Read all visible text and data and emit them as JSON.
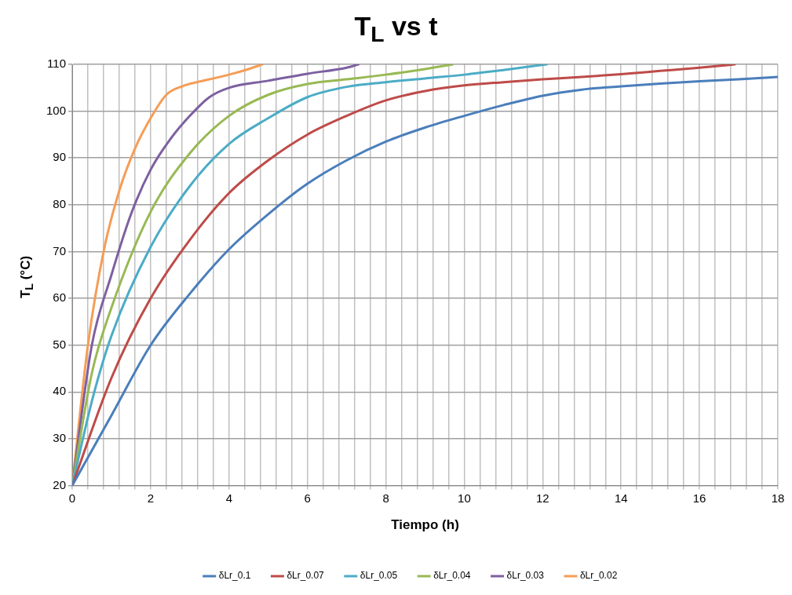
{
  "chart_data": {
    "type": "line",
    "title": "T$_{L}$ vs t",
    "xlabel": "Tiempo (h)",
    "ylabel": "T$_{L}$ (°C)",
    "xlim": [
      0,
      18
    ],
    "xticks": [
      0,
      {
        "value": 0.4,
        "label": null
      },
      {
        "value": 0.8,
        "label": null
      },
      {
        "value": 1.2,
        "label": null
      },
      {
        "value": 1.6,
        "label": null
      },
      2,
      {
        "value": 2.4,
        "label": null
      },
      {
        "value": 2.8,
        "label": null
      },
      {
        "value": 3.2,
        "label": null
      },
      {
        "value": 3.6,
        "label": null
      },
      4,
      {
        "value": 4.4,
        "label": null
      },
      {
        "value": 4.8,
        "label": null
      },
      {
        "value": 5.2,
        "label": null
      },
      {
        "value": 5.6,
        "label": null
      },
      6,
      {
        "value": 6.4,
        "label": null
      },
      {
        "value": 6.8,
        "label": null
      },
      {
        "value": 7.2,
        "label": null
      },
      {
        "value": 7.6,
        "label": null
      },
      8,
      {
        "value": 8.4,
        "label": null
      },
      {
        "value": 8.8,
        "label": null
      },
      {
        "value": 9.2,
        "label": null
      },
      {
        "value": 9.6,
        "label": null
      },
      10,
      {
        "value": 10.4,
        "label": null
      },
      {
        "value": 10.8,
        "label": null
      },
      {
        "value": 11.2,
        "label": null
      },
      {
        "value": 11.6,
        "label": null
      },
      12,
      {
        "value": 12.4,
        "label": null
      },
      {
        "value": 12.8,
        "label": null
      },
      {
        "value": 13.2,
        "label": null
      },
      {
        "value": 13.6,
        "label": null
      },
      14,
      {
        "value": 14.4,
        "label": null
      },
      {
        "value": 14.8,
        "label": null
      },
      {
        "value": 15.2,
        "label": null
      },
      {
        "value": 15.6,
        "label": null
      },
      16,
      {
        "value": 16.4,
        "label": null
      },
      {
        "value": 16.8,
        "label": null
      },
      {
        "value": 17.2,
        "label": null
      },
      {
        "value": 17.6,
        "label": null
      },
      18
    ],
    "ylim": [
      20,
      110
    ],
    "yticks": [
      20,
      30,
      40,
      50,
      60,
      70,
      80,
      90,
      100,
      110
    ],
    "grid": true,
    "legend": "bottom",
    "marker": "none",
    "line_style": "solid",
    "series": [
      {
        "name": "δLr_0.1",
        "color": "#4a7ebb",
        "x": [
          0,
          1,
          2,
          3,
          4,
          5,
          6,
          7,
          8,
          9,
          10,
          11,
          12,
          13,
          14,
          15,
          16,
          17,
          18
        ],
        "values": [
          20,
          35,
          50,
          61,
          70.5,
          78,
          84.5,
          89.5,
          93.5,
          96.5,
          99,
          101.3,
          103.3,
          104.6,
          105.3,
          105.9,
          106.4,
          106.8,
          107.3
        ]
      },
      {
        "name": "δLr_0.07",
        "color": "#be4b48",
        "x": [
          0,
          1,
          2,
          3,
          4,
          5,
          6,
          7,
          8,
          9,
          10,
          11,
          12,
          13,
          14,
          15,
          16,
          16.9
        ],
        "values": [
          20,
          43,
          60,
          72.5,
          82.5,
          89.5,
          95,
          99,
          102.3,
          104.3,
          105.5,
          106.2,
          106.8,
          107.3,
          107.9,
          108.6,
          109.3,
          110
        ]
      },
      {
        "name": "δLr_0.05",
        "color": "#4bacc6",
        "x": [
          0,
          0.5,
          1,
          2,
          3,
          4,
          5,
          6,
          7,
          8,
          9,
          10,
          11,
          12.1
        ],
        "values": [
          20,
          38,
          52,
          71,
          84,
          93,
          98.5,
          103,
          105.2,
          106.2,
          107,
          107.8,
          108.8,
          110
        ]
      },
      {
        "name": "δLr_0.04",
        "color": "#98b954",
        "x": [
          0,
          0.5,
          1,
          2,
          3,
          4,
          5,
          6,
          7,
          8,
          9,
          9.7
        ],
        "values": [
          20,
          44,
          58,
          78.5,
          91,
          99,
          103.5,
          105.8,
          106.8,
          107.8,
          109,
          110
        ]
      },
      {
        "name": "δLr_0.03",
        "color": "#7d60a0",
        "x": [
          0,
          0.5,
          1,
          1.5,
          2,
          2.5,
          3,
          3.5,
          4,
          5,
          6,
          7,
          7.3
        ],
        "values": [
          20,
          50,
          65,
          78,
          87.5,
          94,
          99,
          103,
          105,
          106.5,
          108,
          109.3,
          110
        ]
      },
      {
        "name": "δLr_0.02",
        "color": "#f59d56",
        "x": [
          0,
          0.4,
          0.8,
          1.2,
          1.6,
          2,
          2.4,
          2.8,
          3.5,
          4,
          4.5,
          4.85
        ],
        "values": [
          20,
          50,
          70,
          83,
          92,
          98.5,
          103.5,
          105.3,
          106.8,
          107.8,
          109,
          110
        ]
      }
    ]
  }
}
